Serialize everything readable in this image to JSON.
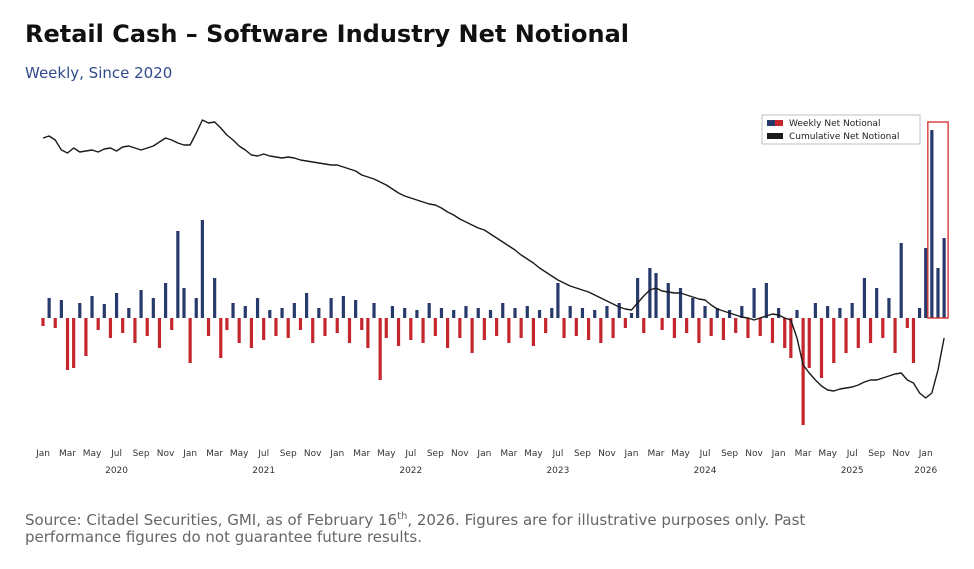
{
  "chart_data": {
    "type": "bar",
    "title": "Retail Cash – Software Industry Net Notional",
    "subtitle": "Weekly, Since 2020",
    "legend": "top-right",
    "categories": [
      "Jan",
      null,
      null,
      null,
      "Mar",
      null,
      null,
      null,
      "May",
      null,
      null,
      null,
      "Jul",
      null,
      null,
      null,
      "Sep",
      null,
      null,
      null,
      "Nov",
      null,
      null,
      null,
      "Jan",
      null,
      null,
      null,
      "Mar",
      null,
      null,
      null,
      "May",
      null,
      null,
      null,
      "Jul",
      null,
      null,
      null,
      "Sep",
      null,
      null,
      null,
      "Nov",
      null,
      null,
      null,
      "Jan",
      null,
      null,
      null,
      "Mar",
      null,
      null,
      null,
      "May",
      null,
      null,
      null,
      "Jul",
      null,
      null,
      null,
      "Sep",
      null,
      null,
      null,
      "Nov",
      null,
      null,
      null,
      "Jan",
      null,
      null,
      null,
      "Mar",
      null,
      null,
      null,
      "May",
      null,
      null,
      null,
      "Jul",
      null,
      null,
      null,
      "Sep",
      null,
      null,
      null,
      "Nov",
      null,
      null,
      null,
      "Jan",
      null,
      null,
      null,
      "Mar",
      null,
      null,
      null,
      "May",
      null,
      null,
      null,
      "Jul",
      null,
      null,
      null,
      "Sep",
      null,
      null,
      null,
      "Nov",
      null,
      null,
      null,
      "Jan",
      null,
      null,
      null,
      "Mar",
      null,
      null,
      null,
      "May",
      null,
      null,
      null,
      "Jul",
      null,
      null,
      null,
      "Sep",
      null,
      null,
      null,
      "Nov",
      null,
      null,
      null,
      "Jan",
      null,
      null,
      null
    ],
    "years": [
      "2020",
      "2021",
      "2022",
      "2023",
      "2024",
      "2025",
      "2026"
    ],
    "ylim": [
      -115,
      205
    ],
    "grid": false,
    "series": [
      {
        "name": "Weekly Net Notional",
        "type": "bar",
        "color": "#283a6b",
        "negative_color": "#c3262c",
        "values": [
          -8,
          20,
          -10,
          18,
          -52,
          -50,
          15,
          -38,
          22,
          -12,
          14,
          -20,
          25,
          -15,
          10,
          -25,
          28,
          -18,
          20,
          -30,
          35,
          -12,
          87,
          30,
          -45,
          20,
          98,
          -18,
          40,
          -40,
          -12,
          15,
          -25,
          12,
          -30,
          20,
          -22,
          8,
          -18,
          10,
          -20,
          15,
          -12,
          25,
          -25,
          10,
          -18,
          20,
          -15,
          22,
          -25,
          18,
          -12,
          -30,
          15,
          -62,
          -20,
          12,
          -28,
          10,
          -22,
          8,
          -25,
          15,
          -18,
          10,
          -30,
          8,
          -20,
          12,
          -35,
          10,
          -22,
          8,
          -18,
          15,
          -25,
          10,
          -20,
          12,
          -28,
          8,
          -15,
          10,
          35,
          -20,
          12,
          -18,
          10,
          -22,
          8,
          -25,
          12,
          -20,
          15,
          -10,
          5,
          40,
          -15,
          50,
          45,
          -12,
          35,
          -20,
          30,
          -15,
          20,
          -25,
          12,
          -18,
          10,
          -22,
          8,
          -15,
          12,
          -20,
          30,
          -18,
          35,
          -25,
          10,
          -30,
          -40,
          8,
          -107,
          -50,
          15,
          -60,
          12,
          -45,
          10,
          -35,
          15,
          -30,
          40,
          -25,
          30,
          -20,
          20,
          -35,
          75,
          -10,
          -45,
          10,
          70,
          188,
          50,
          80
        ]
      },
      {
        "name": "Cumulative Net Notional",
        "type": "line",
        "color": "#1a1a1a",
        "values": [
          180,
          182,
          178,
          168,
          165,
          170,
          166,
          167,
          168,
          166,
          169,
          170,
          167,
          171,
          172,
          170,
          168,
          170,
          172,
          176,
          180,
          178,
          175,
          173,
          173,
          185,
          198,
          195,
          196,
          190,
          183,
          178,
          172,
          168,
          163,
          162,
          164,
          162,
          161,
          160,
          161,
          160,
          158,
          157,
          156,
          155,
          154,
          153,
          153,
          151,
          149,
          147,
          143,
          141,
          139,
          136,
          133,
          129,
          125,
          122,
          120,
          118,
          116,
          114,
          113,
          110,
          106,
          103,
          99,
          96,
          93,
          90,
          88,
          84,
          80,
          76,
          72,
          68,
          63,
          59,
          55,
          50,
          46,
          42,
          38,
          35,
          32,
          30,
          28,
          26,
          23,
          20,
          17,
          14,
          11,
          9,
          8,
          15,
          22,
          28,
          30,
          27,
          26,
          25,
          25,
          23,
          21,
          19,
          18,
          13,
          9,
          7,
          5,
          3,
          1,
          0,
          -2,
          0,
          2,
          4,
          3,
          0,
          -2,
          -20,
          -47,
          -55,
          -62,
          -68,
          -72,
          -73,
          -71,
          -70,
          -69,
          -67,
          -64,
          -62,
          -62,
          -60,
          -58,
          -56,
          -55,
          -62,
          -65,
          -75,
          -80,
          -75,
          -52,
          -20
        ]
      }
    ],
    "source_pre": "Source: Citadel Securities, GMI, as of February 16",
    "source_sup": "th",
    "source_post": ", 2026. Figures are for illustrative purposes only. Past",
    "source_line2": "performance figures do not guarantee future results."
  }
}
